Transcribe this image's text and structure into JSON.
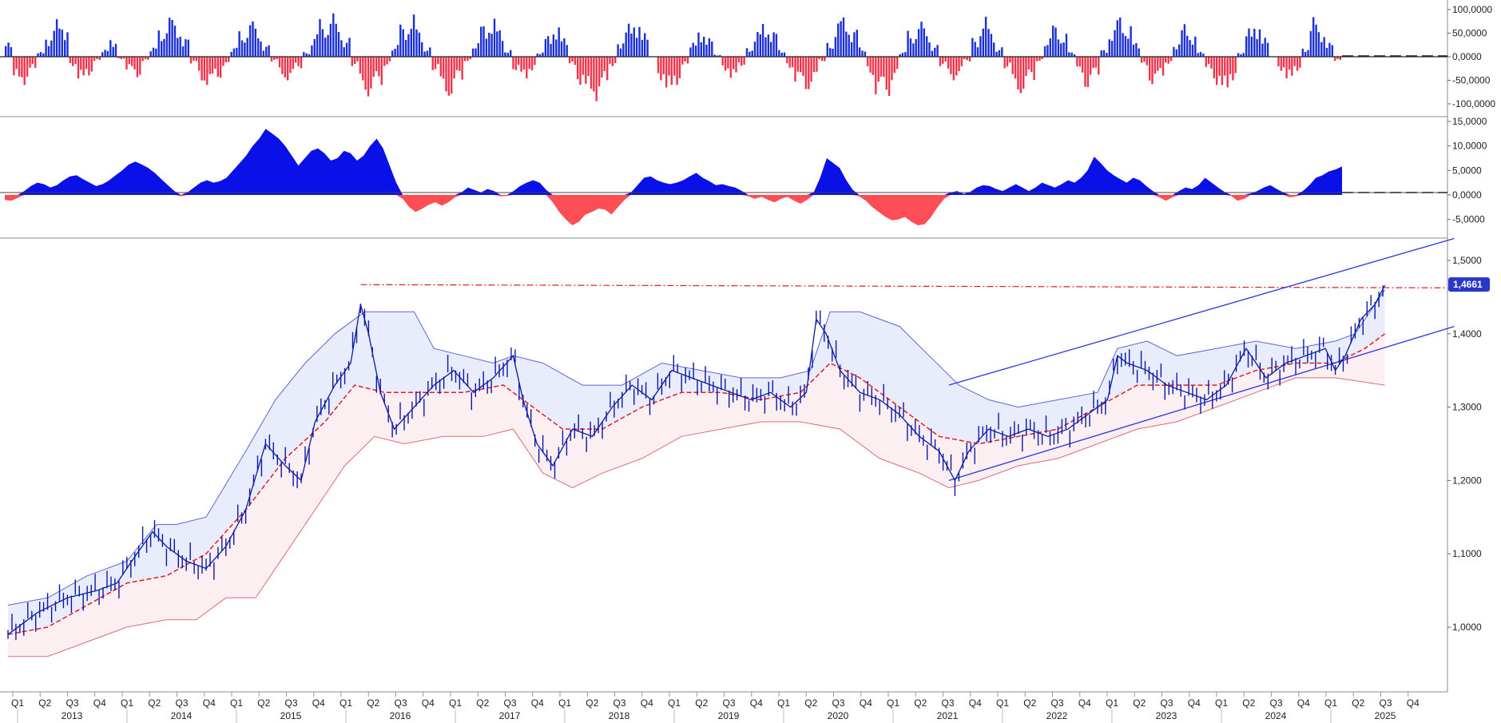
{
  "chart_data": [
    {
      "type": "bar",
      "panel": "top-oscillator",
      "ylim": [
        -100000,
        100000
      ],
      "y_ticks": [
        "100,0000",
        "50,0000",
        "0,0000",
        "-50,0000",
        "-100,0000"
      ],
      "y_tick_values": [
        100000,
        50000,
        0,
        -50000,
        -100000
      ],
      "colors": {
        "positive": "#1a2fd6",
        "negative": "#f0334a"
      },
      "values": [
        30000,
        -52000,
        -60000,
        -30000,
        10000,
        45000,
        80000,
        70000,
        -20000,
        -55000,
        -40000,
        -10000,
        15000,
        40000,
        -5000,
        -30000,
        -45000,
        -10000,
        20000,
        60000,
        88000,
        70000,
        40000,
        -15000,
        -55000,
        -62000,
        -48000,
        -20000,
        20000,
        55000,
        78000,
        60000,
        25000,
        -10000,
        -45000,
        -50000,
        -25000,
        10000,
        48000,
        80000,
        92000,
        70000,
        40000,
        -20000,
        -70000,
        -85000,
        -60000,
        -20000,
        25000,
        70000,
        90000,
        60000,
        20000,
        -30000,
        -75000,
        -88000,
        -50000,
        -10000,
        30000,
        70000,
        85000,
        60000,
        15000,
        -30000,
        -50000,
        -30000,
        10000,
        45000,
        70000,
        40000,
        -20000,
        -60000,
        -80000,
        -95000,
        -60000,
        -20000,
        35000,
        70000,
        80000,
        50000,
        0,
        -50000,
        -80000,
        -60000,
        -20000,
        30000,
        60000,
        40000,
        5000,
        -30000,
        -50000,
        -20000,
        20000,
        55000,
        75000,
        55000,
        15000,
        -25000,
        -55000,
        -75000,
        -55000,
        -10000,
        30000,
        80000,
        85000,
        60000,
        20000,
        -40000,
        -80000,
        -85000,
        -50000,
        10000,
        55000,
        75000,
        60000,
        25000,
        -20000,
        -50000,
        -40000,
        -10000,
        40000,
        85000,
        60000,
        20000,
        -25000,
        -70000,
        -80000,
        -50000,
        -10000,
        40000,
        70000,
        50000,
        10000,
        -35000,
        -70000,
        -40000,
        15000,
        60000,
        88000,
        70000,
        30000,
        -20000,
        -60000,
        -45000,
        -15000,
        30000,
        70000,
        50000,
        10000,
        -30000,
        -60000,
        -80000,
        -50000,
        10000,
        60000,
        75000,
        40000,
        0,
        -30000,
        -55000,
        -30000,
        20000,
        85000,
        60000,
        30000,
        -10000
      ]
    },
    {
      "type": "area",
      "panel": "middle-oscillator",
      "ylim": [
        -8000,
        15000
      ],
      "y_ticks": [
        "15,0000",
        "10,0000",
        "5,0000",
        "0,0000",
        "-5,0000"
      ],
      "y_tick_values": [
        15000,
        10000,
        5000,
        0,
        -5000
      ],
      "colors": {
        "positive": "#0a10e8",
        "negative": "#ff4d55"
      },
      "values": [
        -1000,
        -1200,
        -600,
        800,
        1800,
        2500,
        2200,
        1500,
        2000,
        3000,
        3800,
        4000,
        3200,
        2500,
        1800,
        2200,
        3000,
        4000,
        5000,
        6200,
        6800,
        6200,
        5500,
        4500,
        3200,
        2000,
        800,
        -300,
        500,
        1500,
        2500,
        3000,
        2500,
        2800,
        3500,
        5000,
        6500,
        8000,
        10000,
        11500,
        13500,
        12500,
        11500,
        10000,
        8000,
        6000,
        7500,
        9000,
        9500,
        8500,
        7000,
        7500,
        9000,
        8500,
        7000,
        8000,
        10000,
        11500,
        9500,
        6000,
        2500,
        -800,
        -2500,
        -3500,
        -2800,
        -2000,
        -1500,
        -2200,
        -1500,
        -500,
        500,
        1500,
        1000,
        500,
        1200,
        800,
        -300,
        -200,
        800,
        1800,
        2500,
        3000,
        2500,
        1000,
        -1500,
        -3500,
        -5000,
        -6200,
        -5500,
        -4000,
        -3500,
        -2800,
        -3000,
        -4000,
        -2500,
        -1000,
        500,
        2000,
        3500,
        3800,
        3000,
        2500,
        2200,
        2500,
        3000,
        3800,
        4500,
        3500,
        2800,
        2000,
        2200,
        1800,
        1500,
        800,
        -300,
        -800,
        -400,
        -1000,
        -1500,
        -800,
        -400,
        -1200,
        -1800,
        -1000,
        500,
        3500,
        7500,
        6500,
        5500,
        3000,
        1000,
        -300,
        -1200,
        -2500,
        -3500,
        -4500,
        -5200,
        -5000,
        -4500,
        -5500,
        -6200,
        -6000,
        -4500,
        -2500,
        -800,
        500,
        800,
        200,
        600,
        1500,
        2000,
        1800,
        1200,
        800,
        1500,
        2200,
        1500,
        800,
        1500,
        2500,
        2000,
        1500,
        2200,
        3000,
        2500,
        3500,
        5000,
        7800,
        6500,
        5000,
        4000,
        3200,
        2500,
        3500,
        3000,
        1800,
        800,
        -500,
        -1200,
        -500,
        800,
        1500,
        1200,
        2000,
        3500,
        2500,
        1500,
        600,
        -200,
        -1200,
        -800,
        300,
        800,
        1500,
        2000,
        1200,
        500,
        -500,
        -300,
        800,
        2000,
        3500,
        4000,
        4800,
        5200,
        5800
      ]
    },
    {
      "type": "line",
      "panel": "main-price",
      "ylim": [
        0.94,
        1.525
      ],
      "y_ticks": [
        "1,5000",
        "1,4000",
        "1,3000",
        "1,2000",
        "1,1000",
        "1,0000"
      ],
      "y_tick_values": [
        1.5,
        1.4,
        1.3,
        1.2,
        1.1,
        1.0
      ],
      "last_value_label": "1,4661",
      "colors": {
        "price": "#0b1aa6",
        "middle_band": "#e31b23",
        "upper_band": "#5a66e0",
        "lower_band": "#e06a7a",
        "upper_fill": "#e9ecfb",
        "lower_fill": "#fbeff1",
        "channel": "#2a35e0",
        "resistance": "#e31b23",
        "last_box": "#2a37c8"
      },
      "price": [
        [
          0,
          0.99
        ],
        [
          1.5,
          1.02
        ],
        [
          3,
          1.04
        ],
        [
          4.5,
          1.05
        ],
        [
          5.5,
          1.06
        ],
        [
          6.5,
          1.1
        ],
        [
          7.3,
          1.13
        ],
        [
          8,
          1.11
        ],
        [
          9,
          1.09
        ],
        [
          10,
          1.08
        ],
        [
          11,
          1.11
        ],
        [
          12,
          1.16
        ],
        [
          13,
          1.25
        ],
        [
          14,
          1.22
        ],
        [
          14.8,
          1.2
        ],
        [
          15.5,
          1.28
        ],
        [
          16.5,
          1.33
        ],
        [
          17.3,
          1.36
        ],
        [
          17.8,
          1.44
        ],
        [
          18.2,
          1.4
        ],
        [
          18.8,
          1.32
        ],
        [
          19.5,
          1.27
        ],
        [
          20.5,
          1.3
        ],
        [
          21.5,
          1.33
        ],
        [
          22.5,
          1.35
        ],
        [
          23.5,
          1.32
        ],
        [
          24.5,
          1.34
        ],
        [
          25.5,
          1.37
        ],
        [
          26,
          1.31
        ],
        [
          26.7,
          1.25
        ],
        [
          27.5,
          1.22
        ],
        [
          28.5,
          1.27
        ],
        [
          29.5,
          1.26
        ],
        [
          30.5,
          1.3
        ],
        [
          31.5,
          1.33
        ],
        [
          32.5,
          1.31
        ],
        [
          33.5,
          1.35
        ],
        [
          34.5,
          1.34
        ],
        [
          35.5,
          1.33
        ],
        [
          36.5,
          1.32
        ],
        [
          37.5,
          1.31
        ],
        [
          38.5,
          1.32
        ],
        [
          39.5,
          1.3
        ],
        [
          40.3,
          1.32
        ],
        [
          40.8,
          1.42
        ],
        [
          41.3,
          1.4
        ],
        [
          42,
          1.35
        ],
        [
          43,
          1.32
        ],
        [
          44,
          1.31
        ],
        [
          45,
          1.29
        ],
        [
          46,
          1.26
        ],
        [
          47,
          1.24
        ],
        [
          47.8,
          1.2
        ],
        [
          48.5,
          1.24
        ],
        [
          49.5,
          1.27
        ],
        [
          50.5,
          1.26
        ],
        [
          51.5,
          1.27
        ],
        [
          52.5,
          1.26
        ],
        [
          53.5,
          1.27
        ],
        [
          54.5,
          1.29
        ],
        [
          55.5,
          1.31
        ],
        [
          56,
          1.37
        ],
        [
          56.5,
          1.36
        ],
        [
          57.5,
          1.35
        ],
        [
          58.5,
          1.33
        ],
        [
          59.5,
          1.32
        ],
        [
          60.5,
          1.31
        ],
        [
          61.5,
          1.33
        ],
        [
          62.5,
          1.38
        ],
        [
          63.5,
          1.34
        ],
        [
          64.5,
          1.36
        ],
        [
          65.5,
          1.37
        ],
        [
          66.5,
          1.38
        ],
        [
          67,
          1.35
        ],
        [
          67.5,
          1.37
        ],
        [
          68.3,
          1.42
        ],
        [
          69,
          1.44
        ],
        [
          69.5,
          1.4661
        ]
      ],
      "middle_band": [
        [
          0,
          0.99
        ],
        [
          2,
          1.0
        ],
        [
          4,
          1.03
        ],
        [
          6,
          1.06
        ],
        [
          8,
          1.07
        ],
        [
          10,
          1.1
        ],
        [
          12,
          1.16
        ],
        [
          14,
          1.23
        ],
        [
          16,
          1.28
        ],
        [
          17.5,
          1.33
        ],
        [
          19,
          1.32
        ],
        [
          21,
          1.32
        ],
        [
          23,
          1.32
        ],
        [
          25,
          1.33
        ],
        [
          26.5,
          1.3
        ],
        [
          28,
          1.27
        ],
        [
          30,
          1.27
        ],
        [
          32,
          1.3
        ],
        [
          34,
          1.32
        ],
        [
          36,
          1.32
        ],
        [
          38,
          1.31
        ],
        [
          40,
          1.32
        ],
        [
          41.5,
          1.36
        ],
        [
          43,
          1.34
        ],
        [
          45,
          1.3
        ],
        [
          47,
          1.26
        ],
        [
          49,
          1.25
        ],
        [
          51,
          1.26
        ],
        [
          53,
          1.27
        ],
        [
          55,
          1.3
        ],
        [
          57,
          1.33
        ],
        [
          59,
          1.33
        ],
        [
          61,
          1.33
        ],
        [
          63,
          1.35
        ],
        [
          65,
          1.36
        ],
        [
          67,
          1.36
        ],
        [
          68.5,
          1.38
        ],
        [
          69.5,
          1.4
        ]
      ],
      "upper_band": [
        [
          0,
          1.03
        ],
        [
          2,
          1.04
        ],
        [
          4,
          1.07
        ],
        [
          6,
          1.09
        ],
        [
          7.5,
          1.14
        ],
        [
          8.5,
          1.14
        ],
        [
          10,
          1.15
        ],
        [
          12,
          1.24
        ],
        [
          13.5,
          1.31
        ],
        [
          15,
          1.36
        ],
        [
          16.5,
          1.4
        ],
        [
          18,
          1.43
        ],
        [
          19.5,
          1.43
        ],
        [
          20.5,
          1.43
        ],
        [
          21.5,
          1.38
        ],
        [
          23,
          1.37
        ],
        [
          24.5,
          1.36
        ],
        [
          25.5,
          1.37
        ],
        [
          27,
          1.36
        ],
        [
          29,
          1.33
        ],
        [
          31,
          1.33
        ],
        [
          33,
          1.36
        ],
        [
          35,
          1.35
        ],
        [
          37,
          1.34
        ],
        [
          39,
          1.34
        ],
        [
          40.5,
          1.35
        ],
        [
          41.5,
          1.43
        ],
        [
          43,
          1.43
        ],
        [
          45,
          1.41
        ],
        [
          46.5,
          1.37
        ],
        [
          48,
          1.33
        ],
        [
          49.5,
          1.31
        ],
        [
          51,
          1.3
        ],
        [
          53,
          1.31
        ],
        [
          55,
          1.32
        ],
        [
          56,
          1.38
        ],
        [
          57.5,
          1.39
        ],
        [
          59,
          1.37
        ],
        [
          61,
          1.38
        ],
        [
          63,
          1.39
        ],
        [
          65,
          1.38
        ],
        [
          67,
          1.39
        ],
        [
          68,
          1.4
        ],
        [
          69.5,
          1.46
        ]
      ],
      "lower_band": [
        [
          0,
          0.96
        ],
        [
          2,
          0.96
        ],
        [
          4,
          0.98
        ],
        [
          6,
          1.0
        ],
        [
          8,
          1.01
        ],
        [
          9.5,
          1.01
        ],
        [
          11,
          1.04
        ],
        [
          12.5,
          1.04
        ],
        [
          14,
          1.1
        ],
        [
          15.5,
          1.16
        ],
        [
          17,
          1.22
        ],
        [
          18.5,
          1.26
        ],
        [
          20,
          1.25
        ],
        [
          22,
          1.26
        ],
        [
          24,
          1.26
        ],
        [
          25.5,
          1.27
        ],
        [
          27,
          1.21
        ],
        [
          28.5,
          1.19
        ],
        [
          30,
          1.21
        ],
        [
          32,
          1.23
        ],
        [
          34,
          1.26
        ],
        [
          36,
          1.27
        ],
        [
          38,
          1.28
        ],
        [
          40,
          1.28
        ],
        [
          42,
          1.27
        ],
        [
          44,
          1.23
        ],
        [
          46,
          1.21
        ],
        [
          47.5,
          1.19
        ],
        [
          49,
          1.2
        ],
        [
          51,
          1.22
        ],
        [
          53,
          1.23
        ],
        [
          55,
          1.25
        ],
        [
          57,
          1.27
        ],
        [
          59,
          1.28
        ],
        [
          61,
          1.3
        ],
        [
          63,
          1.32
        ],
        [
          65,
          1.34
        ],
        [
          67,
          1.34
        ],
        [
          69.5,
          1.33
        ]
      ],
      "channel_upper": [
        [
          47.5,
          1.33
        ],
        [
          73,
          1.53
        ]
      ],
      "channel_lower": [
        [
          47.5,
          1.2
        ],
        [
          73,
          1.41
        ]
      ],
      "resistance_level": 1.467,
      "resistance_start_x": 17.8,
      "x_axis": {
        "quarter_labels": [
          "Q1",
          "Q2",
          "Q3",
          "Q4",
          "Q1",
          "Q2",
          "Q3",
          "Q4",
          "Q1",
          "Q2",
          "Q3",
          "Q4",
          "Q1",
          "Q2",
          "Q3",
          "Q4",
          "Q1",
          "Q2",
          "Q3",
          "Q4",
          "Q1",
          "Q2",
          "Q3",
          "Q4",
          "Q1",
          "Q2",
          "Q3",
          "Q4",
          "Q1",
          "Q2",
          "Q3",
          "Q4",
          "Q1",
          "Q2",
          "Q3",
          "Q4",
          "Q1",
          "Q2",
          "Q3",
          "Q4",
          "Q1",
          "Q2",
          "Q3",
          "Q4",
          "Q1",
          "Q2",
          "Q3",
          "Q4",
          "Q1",
          "Q2",
          "Q3",
          "Q4",
          "Q1",
          "Q2",
          "Q3",
          "Q4"
        ],
        "year_labels": [
          "2013",
          "2014",
          "2015",
          "2016",
          "2017",
          "2018",
          "2019",
          "2020",
          "2021",
          "2022",
          "2023",
          "2024",
          "2025"
        ]
      }
    }
  ]
}
